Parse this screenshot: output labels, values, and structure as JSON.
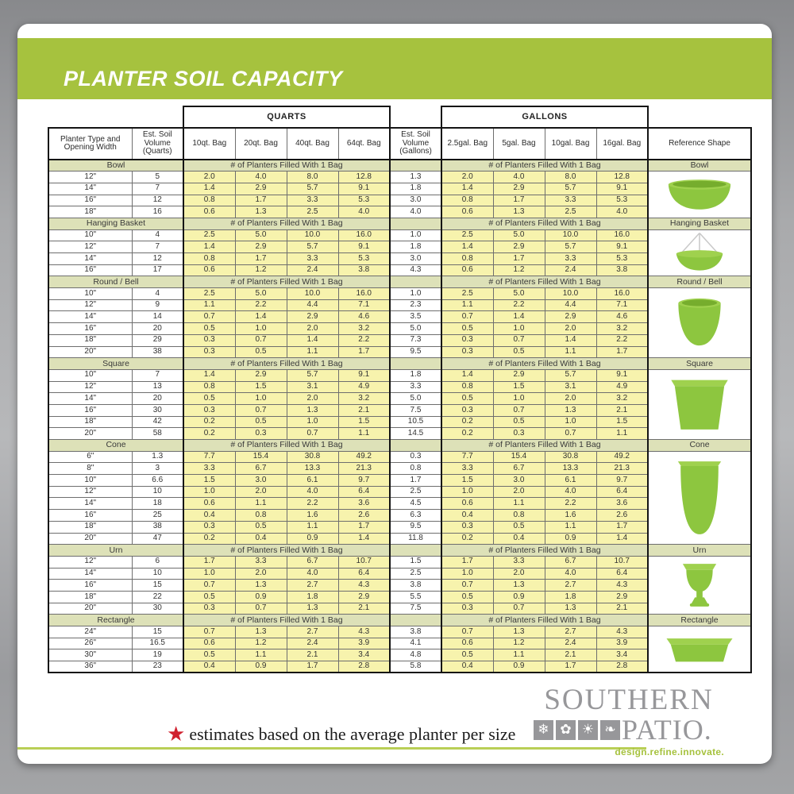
{
  "title": "PLANTER SOIL CAPACITY",
  "table": {
    "group_headers": {
      "quarts": "QUARTS",
      "gallons": "GALLONS"
    },
    "columns": {
      "planter": "Planter Type and Opening Width",
      "est_quarts": "Est. Soil Volume (Quarts)",
      "quart_bags": [
        "10qt. Bag",
        "20qt. Bag",
        "40qt. Bag",
        "64qt. Bag"
      ],
      "est_gallons": "Est. Soil Volume (Gallons)",
      "gallon_bags": [
        "2.5gal. Bag",
        "5gal. Bag",
        "10gal. Bag",
        "16gal. Bag"
      ],
      "reference": "Reference Shape"
    },
    "fill_header": "# of Planters Filled With 1 Bag",
    "sections": [
      {
        "name": "Bowl",
        "shape": "bowl",
        "rows": [
          {
            "w": "12\"",
            "qv": "5",
            "q": [
              "2.0",
              "4.0",
              "8.0",
              "12.8"
            ],
            "gv": "1.3",
            "g": [
              "2.0",
              "4.0",
              "8.0",
              "12.8"
            ]
          },
          {
            "w": "14\"",
            "qv": "7",
            "q": [
              "1.4",
              "2.9",
              "5.7",
              "9.1"
            ],
            "gv": "1.8",
            "g": [
              "1.4",
              "2.9",
              "5.7",
              "9.1"
            ]
          },
          {
            "w": "16\"",
            "qv": "12",
            "q": [
              "0.8",
              "1.7",
              "3.3",
              "5.3"
            ],
            "gv": "3.0",
            "g": [
              "0.8",
              "1.7",
              "3.3",
              "5.3"
            ]
          },
          {
            "w": "18\"",
            "qv": "16",
            "q": [
              "0.6",
              "1.3",
              "2.5",
              "4.0"
            ],
            "gv": "4.0",
            "g": [
              "0.6",
              "1.3",
              "2.5",
              "4.0"
            ]
          }
        ]
      },
      {
        "name": "Hanging Basket",
        "shape": "hanging-basket",
        "rows": [
          {
            "w": "10\"",
            "qv": "4",
            "q": [
              "2.5",
              "5.0",
              "10.0",
              "16.0"
            ],
            "gv": "1.0",
            "g": [
              "2.5",
              "5.0",
              "10.0",
              "16.0"
            ]
          },
          {
            "w": "12\"",
            "qv": "7",
            "q": [
              "1.4",
              "2.9",
              "5.7",
              "9.1"
            ],
            "gv": "1.8",
            "g": [
              "1.4",
              "2.9",
              "5.7",
              "9.1"
            ]
          },
          {
            "w": "14\"",
            "qv": "12",
            "q": [
              "0.8",
              "1.7",
              "3.3",
              "5.3"
            ],
            "gv": "3.0",
            "g": [
              "0.8",
              "1.7",
              "3.3",
              "5.3"
            ]
          },
          {
            "w": "16\"",
            "qv": "17",
            "q": [
              "0.6",
              "1.2",
              "2.4",
              "3.8"
            ],
            "gv": "4.3",
            "g": [
              "0.6",
              "1.2",
              "2.4",
              "3.8"
            ]
          }
        ]
      },
      {
        "name": "Round / Bell",
        "shape": "round-bell",
        "rows": [
          {
            "w": "10\"",
            "qv": "4",
            "q": [
              "2.5",
              "5.0",
              "10.0",
              "16.0"
            ],
            "gv": "1.0",
            "g": [
              "2.5",
              "5.0",
              "10.0",
              "16.0"
            ]
          },
          {
            "w": "12\"",
            "qv": "9",
            "q": [
              "1.1",
              "2.2",
              "4.4",
              "7.1"
            ],
            "gv": "2.3",
            "g": [
              "1.1",
              "2.2",
              "4.4",
              "7.1"
            ]
          },
          {
            "w": "14\"",
            "qv": "14",
            "q": [
              "0.7",
              "1.4",
              "2.9",
              "4.6"
            ],
            "gv": "3.5",
            "g": [
              "0.7",
              "1.4",
              "2.9",
              "4.6"
            ]
          },
          {
            "w": "16\"",
            "qv": "20",
            "q": [
              "0.5",
              "1.0",
              "2.0",
              "3.2"
            ],
            "gv": "5.0",
            "g": [
              "0.5",
              "1.0",
              "2.0",
              "3.2"
            ]
          },
          {
            "w": "18\"",
            "qv": "29",
            "q": [
              "0.3",
              "0.7",
              "1.4",
              "2.2"
            ],
            "gv": "7.3",
            "g": [
              "0.3",
              "0.7",
              "1.4",
              "2.2"
            ]
          },
          {
            "w": "20\"",
            "qv": "38",
            "q": [
              "0.3",
              "0.5",
              "1.1",
              "1.7"
            ],
            "gv": "9.5",
            "g": [
              "0.3",
              "0.5",
              "1.1",
              "1.7"
            ]
          }
        ]
      },
      {
        "name": "Square",
        "shape": "square",
        "rows": [
          {
            "w": "10\"",
            "qv": "7",
            "q": [
              "1.4",
              "2.9",
              "5.7",
              "9.1"
            ],
            "gv": "1.8",
            "g": [
              "1.4",
              "2.9",
              "5.7",
              "9.1"
            ]
          },
          {
            "w": "12\"",
            "qv": "13",
            "q": [
              "0.8",
              "1.5",
              "3.1",
              "4.9"
            ],
            "gv": "3.3",
            "g": [
              "0.8",
              "1.5",
              "3.1",
              "4.9"
            ]
          },
          {
            "w": "14\"",
            "qv": "20",
            "q": [
              "0.5",
              "1.0",
              "2.0",
              "3.2"
            ],
            "gv": "5.0",
            "g": [
              "0.5",
              "1.0",
              "2.0",
              "3.2"
            ]
          },
          {
            "w": "16\"",
            "qv": "30",
            "q": [
              "0.3",
              "0.7",
              "1.3",
              "2.1"
            ],
            "gv": "7.5",
            "g": [
              "0.3",
              "0.7",
              "1.3",
              "2.1"
            ]
          },
          {
            "w": "18\"",
            "qv": "42",
            "q": [
              "0.2",
              "0.5",
              "1.0",
              "1.5"
            ],
            "gv": "10.5",
            "g": [
              "0.2",
              "0.5",
              "1.0",
              "1.5"
            ]
          },
          {
            "w": "20\"",
            "qv": "58",
            "q": [
              "0.2",
              "0.3",
              "0.7",
              "1.1"
            ],
            "gv": "14.5",
            "g": [
              "0.2",
              "0.3",
              "0.7",
              "1.1"
            ]
          }
        ]
      },
      {
        "name": "Cone",
        "shape": "cone",
        "rows": [
          {
            "w": "6\"",
            "qv": "1.3",
            "q": [
              "7.7",
              "15.4",
              "30.8",
              "49.2"
            ],
            "gv": "0.3",
            "g": [
              "7.7",
              "15.4",
              "30.8",
              "49.2"
            ]
          },
          {
            "w": "8\"",
            "qv": "3",
            "q": [
              "3.3",
              "6.7",
              "13.3",
              "21.3"
            ],
            "gv": "0.8",
            "g": [
              "3.3",
              "6.7",
              "13.3",
              "21.3"
            ]
          },
          {
            "w": "10\"",
            "qv": "6.6",
            "q": [
              "1.5",
              "3.0",
              "6.1",
              "9.7"
            ],
            "gv": "1.7",
            "g": [
              "1.5",
              "3.0",
              "6.1",
              "9.7"
            ]
          },
          {
            "w": "12\"",
            "qv": "10",
            "q": [
              "1.0",
              "2.0",
              "4.0",
              "6.4"
            ],
            "gv": "2.5",
            "g": [
              "1.0",
              "2.0",
              "4.0",
              "6.4"
            ]
          },
          {
            "w": "14\"",
            "qv": "18",
            "q": [
              "0.6",
              "1.1",
              "2.2",
              "3.6"
            ],
            "gv": "4.5",
            "g": [
              "0.6",
              "1.1",
              "2.2",
              "3.6"
            ]
          },
          {
            "w": "16\"",
            "qv": "25",
            "q": [
              "0.4",
              "0.8",
              "1.6",
              "2.6"
            ],
            "gv": "6.3",
            "g": [
              "0.4",
              "0.8",
              "1.6",
              "2.6"
            ]
          },
          {
            "w": "18\"",
            "qv": "38",
            "q": [
              "0.3",
              "0.5",
              "1.1",
              "1.7"
            ],
            "gv": "9.5",
            "g": [
              "0.3",
              "0.5",
              "1.1",
              "1.7"
            ]
          },
          {
            "w": "20\"",
            "qv": "47",
            "q": [
              "0.2",
              "0.4",
              "0.9",
              "1.4"
            ],
            "gv": "11.8",
            "g": [
              "0.2",
              "0.4",
              "0.9",
              "1.4"
            ]
          }
        ]
      },
      {
        "name": "Urn",
        "shape": "urn",
        "rows": [
          {
            "w": "12\"",
            "qv": "6",
            "q": [
              "1.7",
              "3.3",
              "6.7",
              "10.7"
            ],
            "gv": "1.5",
            "g": [
              "1.7",
              "3.3",
              "6.7",
              "10.7"
            ]
          },
          {
            "w": "14\"",
            "qv": "10",
            "q": [
              "1.0",
              "2.0",
              "4.0",
              "6.4"
            ],
            "gv": "2.5",
            "g": [
              "1.0",
              "2.0",
              "4.0",
              "6.4"
            ]
          },
          {
            "w": "16\"",
            "qv": "15",
            "q": [
              "0.7",
              "1.3",
              "2.7",
              "4.3"
            ],
            "gv": "3.8",
            "g": [
              "0.7",
              "1.3",
              "2.7",
              "4.3"
            ]
          },
          {
            "w": "18\"",
            "qv": "22",
            "q": [
              "0.5",
              "0.9",
              "1.8",
              "2.9"
            ],
            "gv": "5.5",
            "g": [
              "0.5",
              "0.9",
              "1.8",
              "2.9"
            ]
          },
          {
            "w": "20\"",
            "qv": "30",
            "q": [
              "0.3",
              "0.7",
              "1.3",
              "2.1"
            ],
            "gv": "7.5",
            "g": [
              "0.3",
              "0.7",
              "1.3",
              "2.1"
            ]
          }
        ]
      },
      {
        "name": "Rectangle",
        "shape": "rectangle",
        "rows": [
          {
            "w": "24\"",
            "qv": "15",
            "q": [
              "0.7",
              "1.3",
              "2.7",
              "4.3"
            ],
            "gv": "3.8",
            "g": [
              "0.7",
              "1.3",
              "2.7",
              "4.3"
            ]
          },
          {
            "w": "26\"",
            "qv": "16.5",
            "q": [
              "0.6",
              "1.2",
              "2.4",
              "3.9"
            ],
            "gv": "4.1",
            "g": [
              "0.6",
              "1.2",
              "2.4",
              "3.9"
            ]
          },
          {
            "w": "30\"",
            "qv": "19",
            "q": [
              "0.5",
              "1.1",
              "2.1",
              "3.4"
            ],
            "gv": "4.8",
            "g": [
              "0.5",
              "1.1",
              "2.1",
              "3.4"
            ]
          },
          {
            "w": "36\"",
            "qv": "23",
            "q": [
              "0.4",
              "0.9",
              "1.7",
              "2.8"
            ],
            "gv": "5.8",
            "g": [
              "0.4",
              "0.9",
              "1.7",
              "2.8"
            ]
          }
        ]
      }
    ]
  },
  "footer": {
    "star": "★",
    "note": "estimates based on the average planter per size",
    "logo_word1": "SOUTHERN",
    "logo_word2": "PATIO.",
    "logo_icons": [
      "snowflake",
      "flower",
      "sun",
      "leaf"
    ],
    "tagline": "design.refine.innovate."
  },
  "colors": {
    "banner_green": "#a6c23e",
    "section_band": "#dde1b8",
    "cell_yellow": "#f7f3ad",
    "logo_gray": "#97979a",
    "star_red": "#d0202e",
    "line_green": "#b9cf56",
    "planter_green": "#8dc63f"
  }
}
